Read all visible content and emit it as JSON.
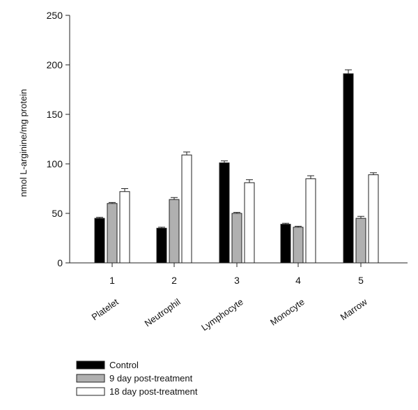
{
  "chart_data": {
    "type": "bar",
    "title": "",
    "xlabel": "",
    "ylabel": "nmol L-arginine/mg protein",
    "ylim": [
      0,
      250
    ],
    "yticks": [
      0,
      50,
      100,
      150,
      200,
      250
    ],
    "x_tick_labels": [
      "1",
      "2",
      "3",
      "4",
      "5"
    ],
    "categories": [
      "Platelet",
      "Neutrophil",
      "Lymphocyte",
      "Monocyte",
      "Marrow"
    ],
    "series": [
      {
        "name": "Control",
        "color": "#000000",
        "values": [
          45,
          35,
          101,
          39,
          191
        ],
        "errors": [
          1,
          1,
          2,
          1,
          4
        ]
      },
      {
        "name": "9 day post-treatment",
        "color": "#b0b0b0",
        "values": [
          60,
          64,
          50,
          36,
          45
        ],
        "errors": [
          1,
          2,
          1,
          1,
          2
        ]
      },
      {
        "name": "18 day post-treatment",
        "color": "#ffffff",
        "values": [
          72,
          109,
          81,
          85,
          89
        ],
        "errors": [
          3,
          3,
          3,
          3,
          2
        ]
      }
    ],
    "grid": false,
    "legend_position": "bottom-left"
  }
}
